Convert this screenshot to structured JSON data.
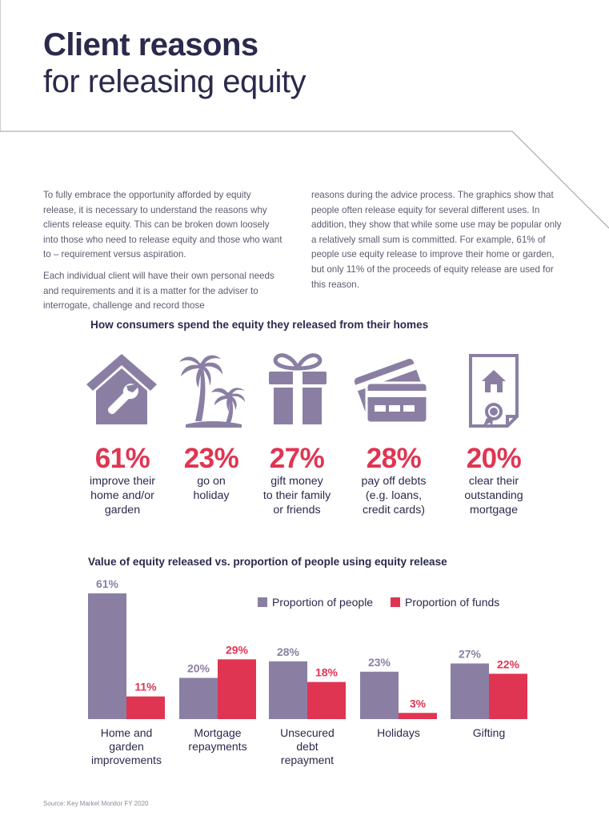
{
  "title": {
    "bold": "Client reasons",
    "light": "for releasing equity"
  },
  "intro": {
    "left": [
      "To fully embrace the opportunity afforded by equity release, it is necessary to understand the reasons why clients release equity. This can be broken down loosely into those who need to release equity and those who want to – requirement versus aspiration.",
      "Each individual client will have their own personal needs and requirements and it is a matter for the adviser to interrogate, challenge and record those"
    ],
    "right": [
      "reasons during the advice process. The graphics show that people often release equity for several different uses. In addition, they show that while some use may be popular only a relatively small sum is committed. For example, 61% of people use equity release to improve their home or garden, but only 11% of the proceeds of equity release are used for this reason."
    ]
  },
  "infographic": {
    "heading": "How consumers spend the equity they released from their homes",
    "items": [
      {
        "icon": "house-wrench-icon",
        "pct": "61%",
        "label": [
          "improve their",
          "home and/or",
          "garden"
        ]
      },
      {
        "icon": "palm-trees-icon",
        "pct": "23%",
        "label": [
          "go on",
          "holiday"
        ]
      },
      {
        "icon": "gift-icon",
        "pct": "27%",
        "label": [
          "gift money",
          "to their family",
          "or friends"
        ]
      },
      {
        "icon": "credit-cards-icon",
        "pct": "28%",
        "label": [
          "pay off debts",
          "(e.g. loans,",
          "credit cards)"
        ]
      },
      {
        "icon": "mortgage-certificate-icon",
        "pct": "20%",
        "label": [
          "clear their",
          "outstanding",
          "mortgage"
        ]
      }
    ]
  },
  "chart_heading": "Value of equity released vs. proportion of people using equity release",
  "chart_data": {
    "type": "bar",
    "categories": [
      [
        "Home and",
        "garden",
        "improvements"
      ],
      [
        "Mortgage",
        "repayments"
      ],
      [
        "Unsecured",
        "debt",
        "repayment"
      ],
      [
        "Holidays"
      ],
      [
        "Gifting"
      ]
    ],
    "series": [
      {
        "name": "Proportion of people",
        "color": "#8a7fa3",
        "values": [
          61,
          20,
          28,
          23,
          27
        ],
        "labels": [
          "61%",
          "20%",
          "28%",
          "23%",
          "27%"
        ]
      },
      {
        "name": "Proportion of funds",
        "color": "#e03552",
        "values": [
          11,
          29,
          18,
          3,
          22
        ],
        "labels": [
          "11%",
          "29%",
          "18%",
          "3%",
          "22%"
        ]
      }
    ],
    "legend_position": "top-right",
    "ylim": [
      0,
      61
    ],
    "grid": false
  },
  "source": "Source: Key Market Monitor FY 2020",
  "colors": {
    "navy": "#2b2a4c",
    "purple": "#8a7fa3",
    "red": "#e03552"
  }
}
